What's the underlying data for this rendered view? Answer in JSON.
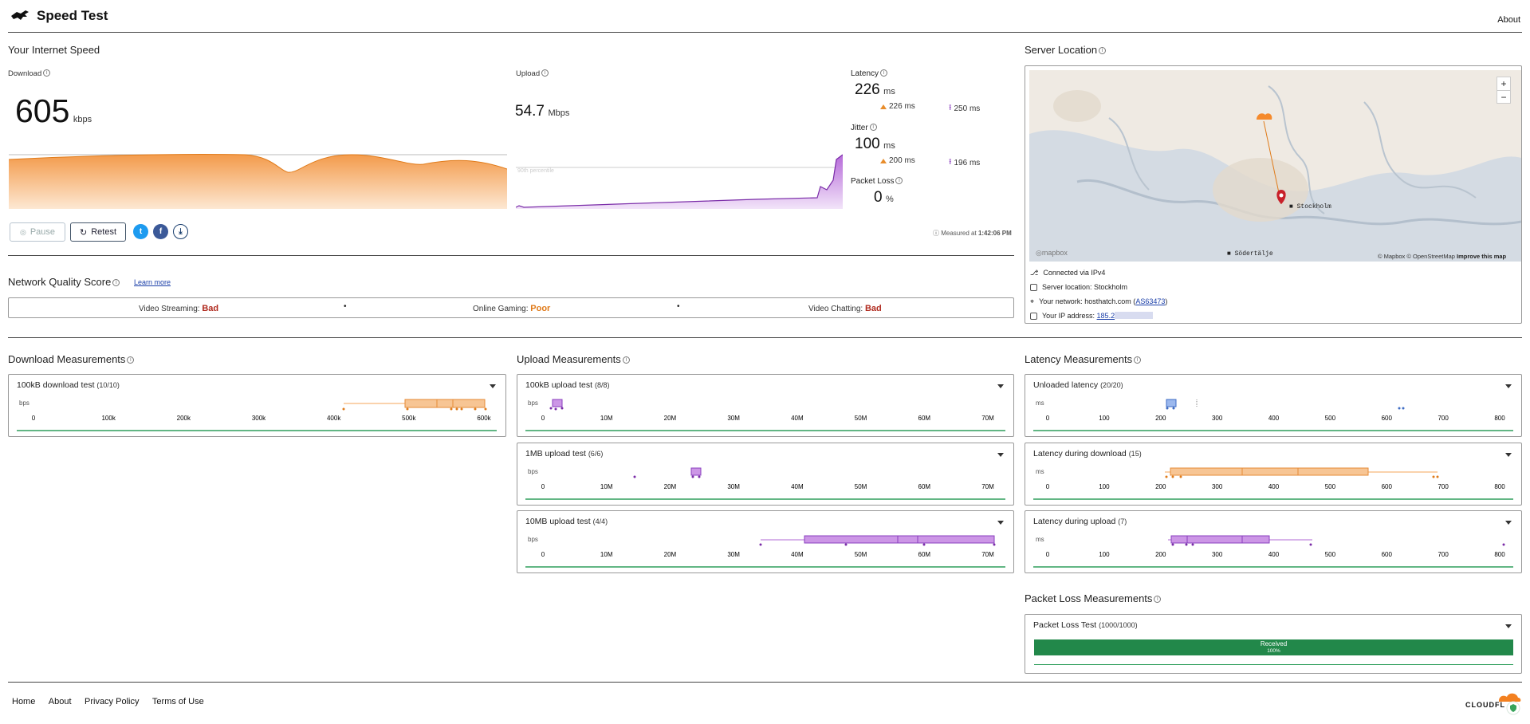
{
  "header": {
    "title": "Speed Test",
    "about": "About",
    "logo_icon": "speed-test-logo-icon"
  },
  "speed": {
    "section_title": "Your Internet Speed",
    "download": {
      "label": "Download",
      "value": "605",
      "unit": "kbps"
    },
    "upload": {
      "label": "Upload",
      "value": "54.7",
      "unit": "Mbps",
      "chart_hint": "90th percentile"
    },
    "latency": {
      "label": "Latency",
      "value": "226",
      "unit": "ms",
      "down": "226 ms",
      "up": "250 ms"
    },
    "jitter": {
      "label": "Jitter",
      "value": "100",
      "unit": "ms",
      "down": "200 ms",
      "up": "196 ms"
    },
    "packet_loss": {
      "label": "Packet Loss",
      "value": "0",
      "unit": "%"
    },
    "buttons": {
      "pause": "Pause",
      "retest": "Retest"
    },
    "measured_prefix": "Measured at ",
    "measured_time": "1:42:06 PM"
  },
  "quality": {
    "title": "Network Quality Score",
    "learn_more": "Learn more",
    "items": [
      {
        "label": "Video Streaming:",
        "rating": "Bad"
      },
      {
        "label": "Online Gaming:",
        "rating": "Poor"
      },
      {
        "label": "Video Chatting:",
        "rating": "Bad"
      }
    ]
  },
  "server": {
    "title": "Server Location",
    "map_labels": {
      "city": "Stockholm",
      "town": "Södertälje",
      "mapbox": "mapbox"
    },
    "attribution": "© Mapbox © OpenStreetMap",
    "improve": "Improve this map",
    "zoom_in": "+",
    "zoom_out": "−",
    "rows": [
      {
        "text": "Connected via IPv4"
      },
      {
        "text": "Server location: Stockholm"
      },
      {
        "text": "Your network: hosthatch.com (",
        "link": "AS63473",
        "after": ")"
      },
      {
        "text": "Your IP address: ",
        "link": "185.2"
      }
    ]
  },
  "measurements": {
    "download": {
      "title": "Download Measurements",
      "cards": [
        {
          "label": "100kB download test",
          "count": "(10/10)",
          "unit": "bps",
          "ticks": [
            "0",
            "100k",
            "200k",
            "300k",
            "400k",
            "500k",
            "600k"
          ]
        }
      ]
    },
    "upload": {
      "title": "Upload Measurements",
      "cards": [
        {
          "label": "100kB upload test",
          "count": "(8/8)",
          "unit": "bps",
          "ticks": [
            "0",
            "10M",
            "20M",
            "30M",
            "40M",
            "50M",
            "60M",
            "70M"
          ]
        },
        {
          "label": "1MB upload test",
          "count": "(6/6)",
          "unit": "bps",
          "ticks": [
            "0",
            "10M",
            "20M",
            "30M",
            "40M",
            "50M",
            "60M",
            "70M"
          ]
        },
        {
          "label": "10MB upload test",
          "count": "(4/4)",
          "unit": "bps",
          "ticks": [
            "0",
            "10M",
            "20M",
            "30M",
            "40M",
            "50M",
            "60M",
            "70M"
          ]
        }
      ]
    },
    "latency": {
      "title": "Latency Measurements",
      "cards": [
        {
          "label": "Unloaded latency",
          "count": "(20/20)",
          "unit": "ms",
          "ticks": [
            "0",
            "100",
            "200",
            "300",
            "400",
            "500",
            "600",
            "700",
            "800"
          ]
        },
        {
          "label": "Latency during download",
          "count": "(15)",
          "unit": "ms",
          "ticks": [
            "0",
            "100",
            "200",
            "300",
            "400",
            "500",
            "600",
            "700",
            "800"
          ]
        },
        {
          "label": "Latency during upload",
          "count": "(7)",
          "unit": "ms",
          "ticks": [
            "0",
            "100",
            "200",
            "300",
            "400",
            "500",
            "600",
            "700",
            "800"
          ]
        }
      ]
    },
    "packet": {
      "title": "Packet Loss Measurements",
      "card": {
        "label": "Packet Loss Test",
        "count": "(1000/1000)",
        "bar_label": "Received",
        "bar_pct": "100%"
      }
    }
  },
  "footer": {
    "links": [
      "Home",
      "About",
      "Privacy Policy",
      "Terms of Use"
    ],
    "brand": "CLOUDFL"
  },
  "colors": {
    "download": "#f5a45a",
    "upload": "#b06ad6",
    "latency": "#5b86d6",
    "good": "#22884a",
    "bad": "#b02a1e",
    "poor": "#e07b1a"
  }
}
